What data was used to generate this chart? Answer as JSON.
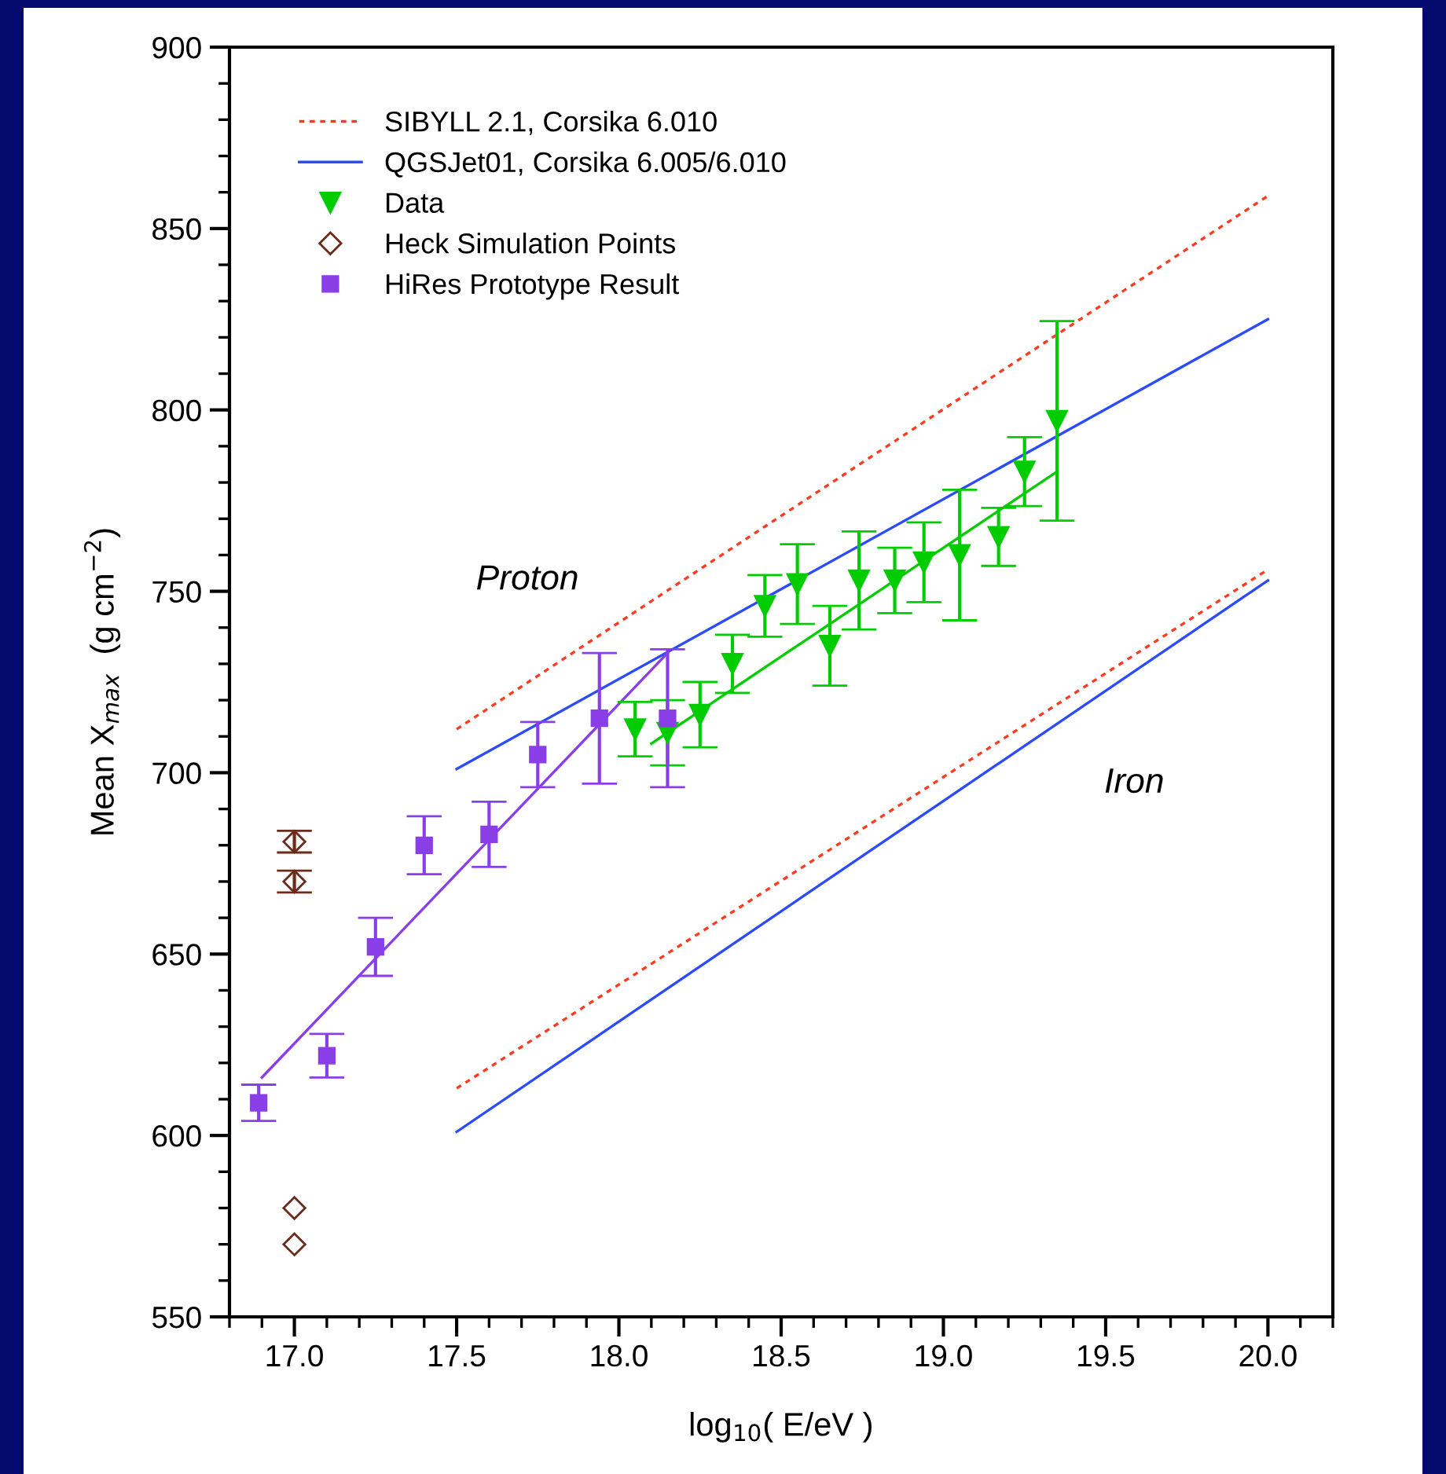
{
  "chart_data": {
    "type": "scatter",
    "xlabel": "log$_{10}$( E/eV )",
    "ylabel": "Mean X$_{max}$  (g cm$^{−2}$)",
    "xlim": [
      16.8,
      20.2
    ],
    "ylim": [
      550,
      900
    ],
    "xticks": [
      {
        "value": 17.0,
        "label": "17.0"
      },
      {
        "value": 17.5,
        "label": "17.5"
      },
      {
        "value": 18.0,
        "label": "18.0"
      },
      {
        "value": 18.5,
        "label": "18.5"
      },
      {
        "value": 19.0,
        "label": "19.0"
      },
      {
        "value": 19.5,
        "label": "19.5"
      },
      {
        "value": 20.0,
        "label": "20.0"
      }
    ],
    "yticks": [
      550,
      600,
      650,
      700,
      750,
      800,
      850,
      900
    ],
    "grid": false,
    "legend": "top left",
    "series": [
      {
        "name": "SIBYLL 2.1, Corsika 6.010",
        "type": "line",
        "line_style": "dotted",
        "marker": "none",
        "color": "#ff3b1f",
        "x": [
          17.5,
          20.0
        ],
        "values": [
          712,
          859
        ]
      },
      {
        "type": "line",
        "line_style": "dotted",
        "marker": "none",
        "color": "#ff3b1f",
        "x": [
          17.5,
          20.0
        ],
        "values": [
          613,
          756
        ]
      },
      {
        "name": "QGSJet01, Corsika 6.005/6.010",
        "type": "line",
        "line_style": "solid",
        "marker": "none",
        "color": "#2a4bff",
        "x": [
          17.5,
          20.0
        ],
        "values": [
          701,
          825
        ]
      },
      {
        "type": "line",
        "line_style": "solid",
        "marker": "none",
        "color": "#2a4bff",
        "x": [
          17.5,
          20.0
        ],
        "values": [
          601,
          753
        ]
      },
      {
        "name": "Data",
        "marker": "triangle",
        "color": "#00cc00",
        "x": [
          18.05,
          18.15,
          18.25,
          18.35,
          18.45,
          18.55,
          18.65,
          18.74,
          18.85,
          18.94,
          19.05,
          19.17,
          19.25,
          19.35
        ],
        "values": [
          712,
          711,
          716,
          730,
          746,
          752,
          735,
          753,
          753,
          758,
          760,
          765,
          783,
          797
        ],
        "errors": [
          7.5,
          9,
          9,
          8,
          8.5,
          11,
          11,
          13.5,
          9,
          11,
          18,
          8,
          9.5,
          27.5
        ]
      },
      {
        "type": "line",
        "line_style": "solid",
        "marker": "none",
        "color": "#00cc00",
        "x": [
          18.1,
          19.35
        ],
        "values": [
          708,
          783
        ]
      },
      {
        "name": "Heck Simulation Points",
        "marker": "diamond",
        "color": "#6b2a1a",
        "x": [
          17.0,
          17.0,
          17.0,
          17.0
        ],
        "values": [
          681,
          670,
          580,
          570
        ],
        "errors": [
          3,
          3,
          null,
          null
        ]
      },
      {
        "name": "HiRes Prototype Result",
        "marker": "square",
        "color": "#8a3ee8",
        "x": [
          16.89,
          17.1,
          17.25,
          17.4,
          17.6,
          17.75,
          17.94,
          18.15
        ],
        "values": [
          609,
          622,
          652,
          680,
          683,
          705,
          715,
          715
        ],
        "errors": [
          5,
          6,
          8,
          8,
          9,
          9,
          18,
          19
        ]
      },
      {
        "type": "line",
        "line_style": "solid",
        "marker": "none",
        "color": "#8a3ee8",
        "x": [
          16.9,
          18.15
        ],
        "values": [
          616,
          733
        ]
      }
    ],
    "annotations": [
      "Proton",
      "Iron"
    ]
  }
}
